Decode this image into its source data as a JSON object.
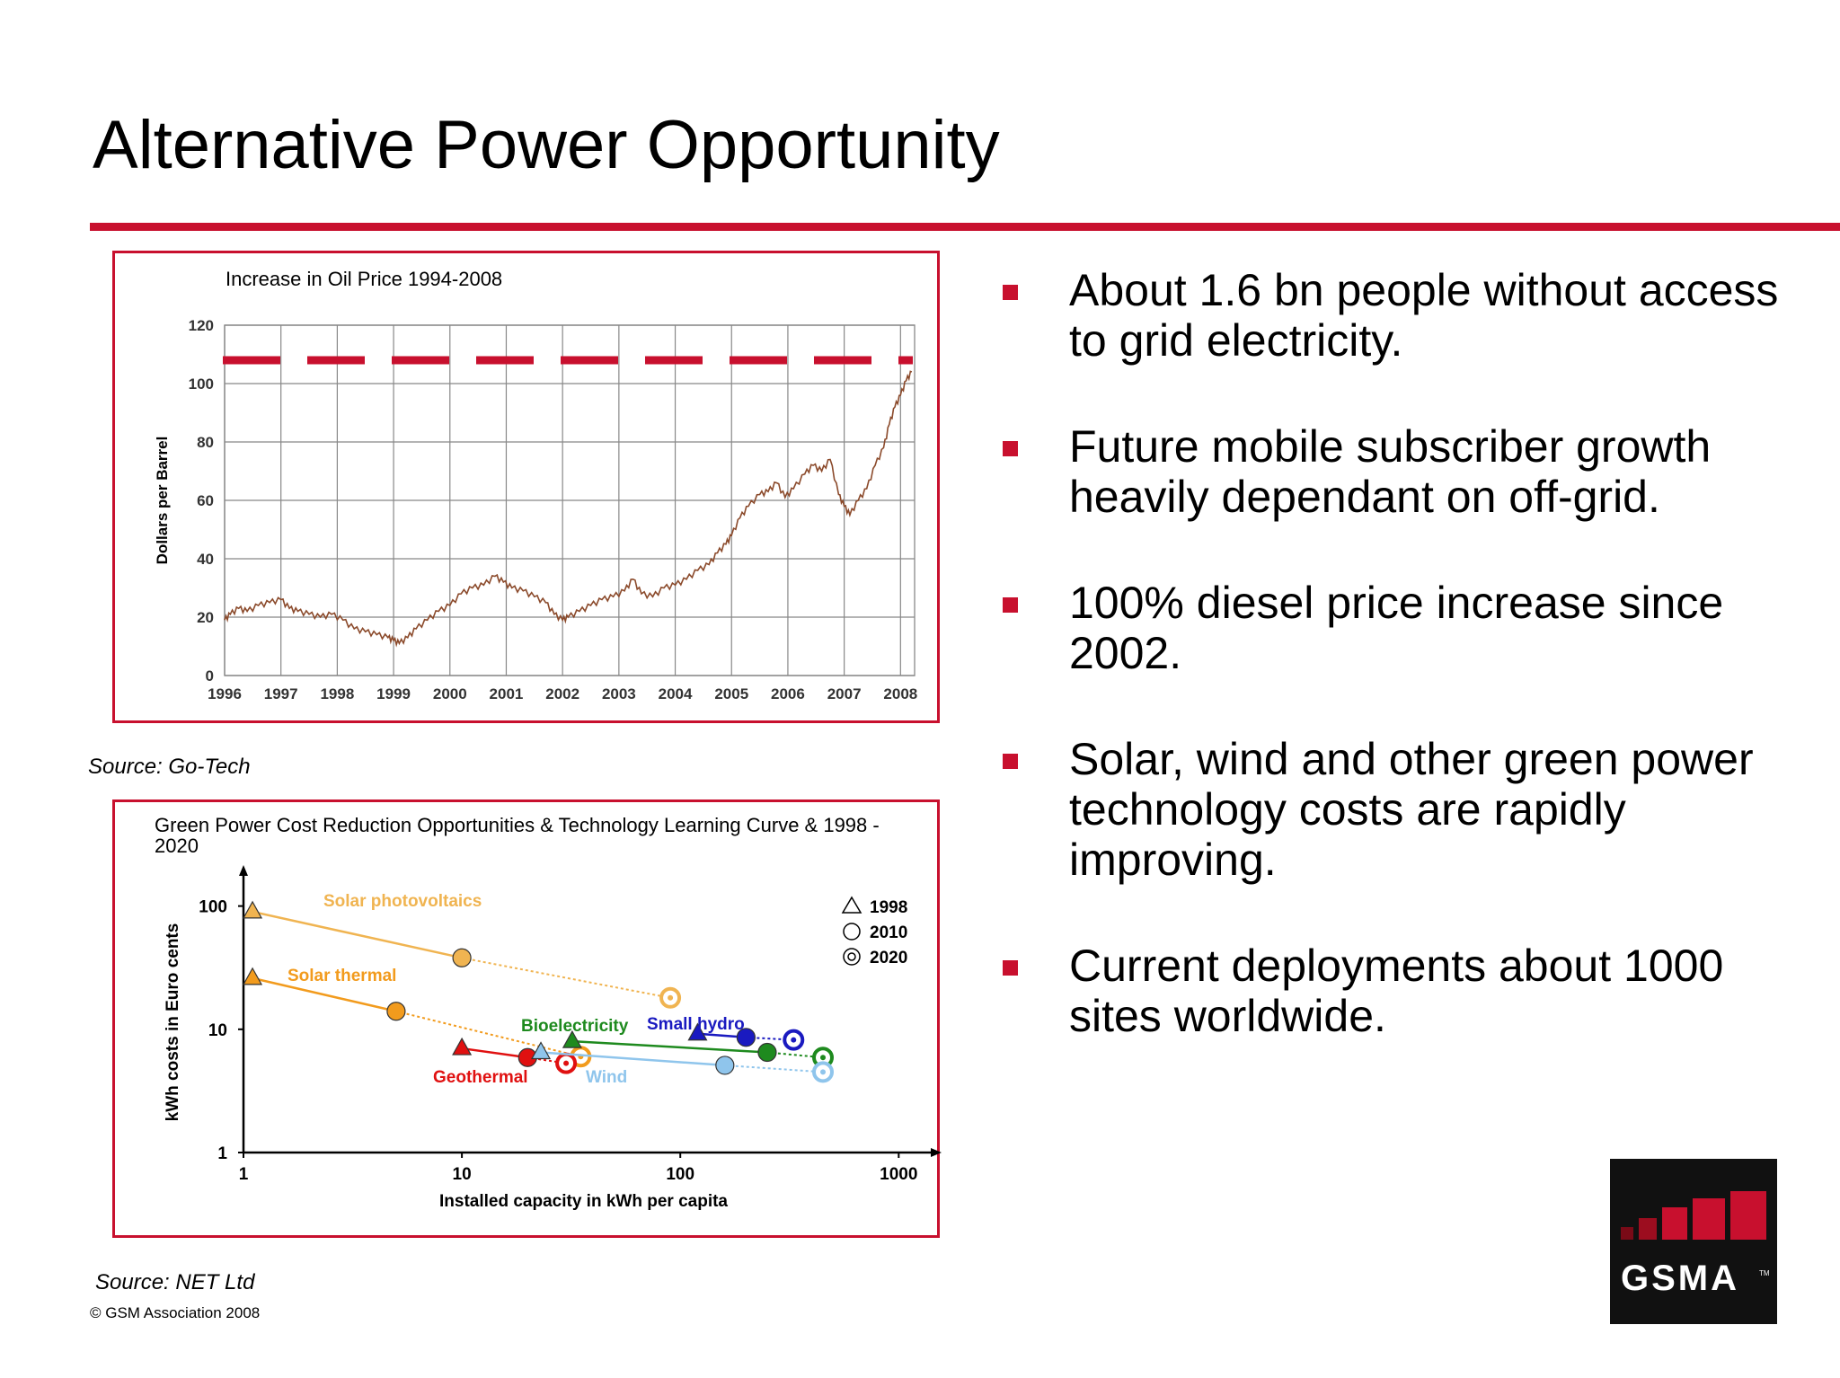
{
  "slide": {
    "title": "Alternative Power Opportunity",
    "source_top": "Source: Go-Tech",
    "source_bottom": "Source: NET Ltd",
    "copyright": "© GSM Association 2008",
    "accent_color": "#c8102e"
  },
  "bullets": [
    "About 1.6 bn people without access to grid electricity.",
    "Future mobile subscriber growth heavily dependant on off-grid.",
    "100% diesel price increase since 2002.",
    "Solar, wind and other green power technology costs are rapidly improving.",
    "Current deployments about 1000 sites worldwide."
  ],
  "logo": {
    "text": "GSMA",
    "tm": "TM",
    "icon": "gsma-bars-logo"
  },
  "chart_data": [
    {
      "type": "line",
      "title": "Increase in Oil Price 1994-2008",
      "xlabel": "",
      "ylabel": "Dollars per Barrel",
      "x_ticks": [
        "1996",
        "1997",
        "1998",
        "1999",
        "2000",
        "2001",
        "2002",
        "2003",
        "2004",
        "2005",
        "2006",
        "2007",
        "2008"
      ],
      "y_ticks": [
        0,
        20,
        40,
        60,
        80,
        100,
        120
      ],
      "xlim": [
        1996,
        2008.25
      ],
      "ylim": [
        0,
        120
      ],
      "grid": true,
      "line_color": "#8b4a2b",
      "reference_line": {
        "y": 108,
        "style": "dashed",
        "color": "#c8102e"
      },
      "series": [
        {
          "x": [
            1996.0,
            1996.1,
            1996.25,
            1996.4,
            1996.6,
            1996.8,
            1997.0,
            1997.15,
            1997.3,
            1997.5,
            1997.7,
            1997.9,
            1998.1,
            1998.3,
            1998.5,
            1998.7,
            1998.9,
            1999.0,
            1999.1,
            1999.25,
            1999.4,
            1999.6,
            1999.8,
            2000.0,
            2000.2,
            2000.4,
            2000.6,
            2000.8,
            2000.95,
            2001.1,
            2001.3,
            2001.5,
            2001.7,
            2001.85,
            2002.0,
            2002.1,
            2002.3,
            2002.5,
            2002.7,
            2002.9,
            2003.1,
            2003.25,
            2003.4,
            2003.6,
            2003.8,
            2004.0,
            2004.2,
            2004.4,
            2004.6,
            2004.75,
            2004.9,
            2005.0,
            2005.15,
            2005.3,
            2005.5,
            2005.65,
            2005.8,
            2005.95,
            2006.1,
            2006.3,
            2006.45,
            2006.6,
            2006.75,
            2006.9,
            2007.0,
            2007.1,
            2007.25,
            2007.4,
            2007.55,
            2007.7,
            2007.8,
            2007.9,
            2008.0,
            2008.1,
            2008.2
          ],
          "y": [
            19,
            21,
            23,
            22,
            24,
            25,
            26,
            23,
            22,
            21,
            20,
            21,
            19,
            16,
            15,
            14,
            13,
            12,
            11,
            13,
            16,
            19,
            22,
            24,
            28,
            30,
            31,
            34,
            32,
            30,
            29,
            27,
            25,
            21,
            19,
            20,
            22,
            24,
            26,
            27,
            29,
            33,
            28,
            27,
            30,
            31,
            33,
            36,
            38,
            42,
            45,
            48,
            54,
            58,
            62,
            63,
            66,
            61,
            64,
            69,
            72,
            70,
            74,
            62,
            58,
            55,
            60,
            64,
            72,
            78,
            86,
            92,
            96,
            101,
            104
          ]
        }
      ]
    },
    {
      "type": "scatter",
      "title": "Green Power Cost Reduction Opportunities & Technology Learning Curve & 1998 - 2020",
      "xlabel": "Installed capacity in kWh per capita",
      "ylabel": "kWh costs in Euro cents",
      "x_scale": "log",
      "y_scale": "log",
      "x_ticks": [
        1,
        10,
        100,
        1000
      ],
      "y_ticks": [
        1,
        10,
        100
      ],
      "xlim": [
        1,
        1300
      ],
      "ylim": [
        1,
        130
      ],
      "legend": {
        "position": "top-right",
        "entries": [
          "1998",
          "2010",
          "2020"
        ]
      },
      "series": [
        {
          "name": "Solar photovoltaics",
          "color": "#f0b451",
          "points": [
            {
              "year": "1998",
              "x": 1.1,
              "y": 90
            },
            {
              "year": "2010",
              "x": 10,
              "y": 38
            },
            {
              "year": "2020",
              "x": 90,
              "y": 18
            }
          ]
        },
        {
          "name": "Solar thermal",
          "color": "#f29b1d",
          "points": [
            {
              "year": "1998",
              "x": 1.1,
              "y": 26
            },
            {
              "year": "2010",
              "x": 5,
              "y": 14
            },
            {
              "year": "2020",
              "x": 35,
              "y": 6
            }
          ]
        },
        {
          "name": "Bioelectricity",
          "color": "#1e8a1e",
          "points": [
            {
              "year": "1998",
              "x": 32,
              "y": 8
            },
            {
              "year": "2010",
              "x": 250,
              "y": 6.5
            },
            {
              "year": "2020",
              "x": 450,
              "y": 5.9
            }
          ]
        },
        {
          "name": "Small hydro",
          "color": "#1a1ac0",
          "points": [
            {
              "year": "1998",
              "x": 120,
              "y": 9.2
            },
            {
              "year": "2010",
              "x": 200,
              "y": 8.6
            },
            {
              "year": "2020",
              "x": 330,
              "y": 8.2
            }
          ]
        },
        {
          "name": "Geothermal",
          "color": "#e01010",
          "points": [
            {
              "year": "1998",
              "x": 10,
              "y": 7
            },
            {
              "year": "2010",
              "x": 20,
              "y": 5.9
            },
            {
              "year": "2020",
              "x": 30,
              "y": 5.3
            }
          ]
        },
        {
          "name": "Wind",
          "color": "#8fc5ec",
          "points": [
            {
              "year": "1998",
              "x": 23,
              "y": 6.5
            },
            {
              "year": "2010",
              "x": 160,
              "y": 5.1
            },
            {
              "year": "2020",
              "x": 450,
              "y": 4.5
            }
          ]
        }
      ]
    }
  ]
}
